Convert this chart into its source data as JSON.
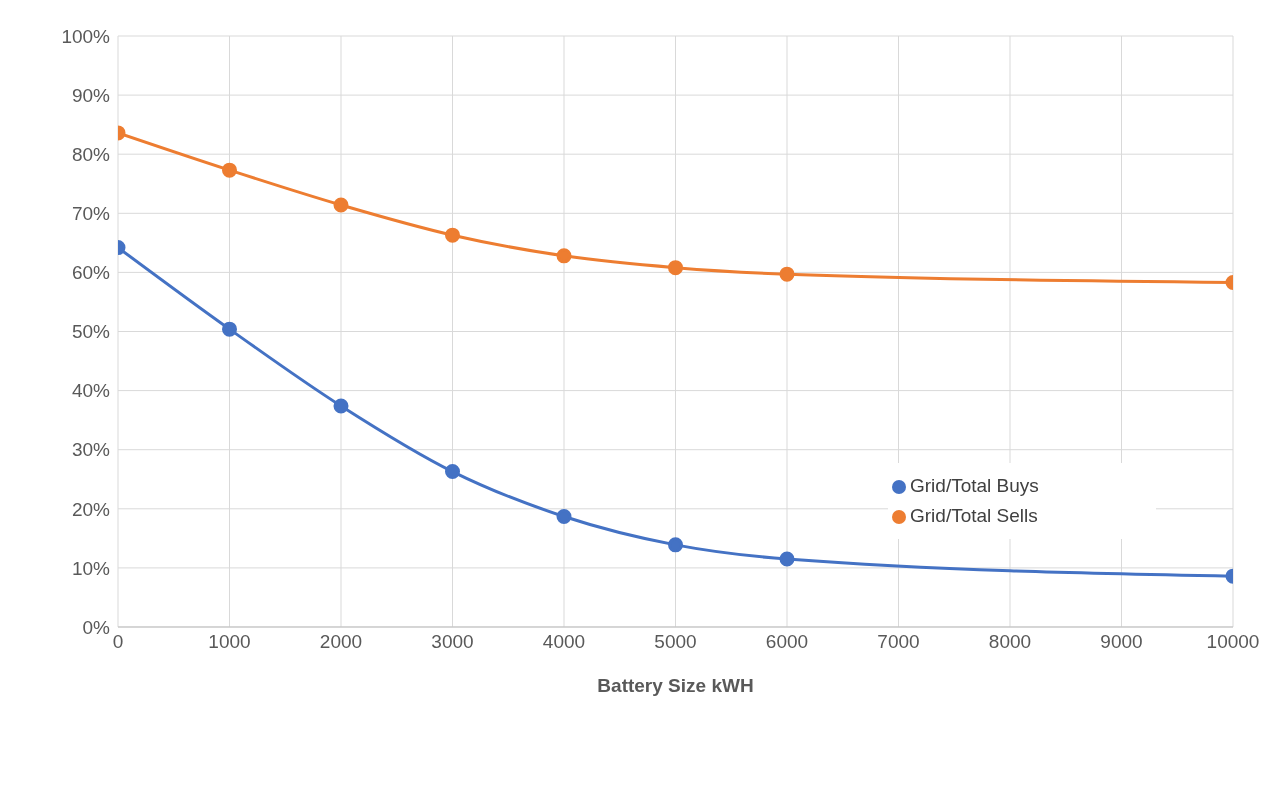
{
  "chart_data": {
    "type": "line",
    "xlabel": "Battery Size kWH",
    "x": [
      0,
      1000,
      2000,
      3000,
      4000,
      5000,
      6000,
      10000
    ],
    "series": [
      {
        "name": "Grid/Total Sells",
        "color": "#ed7d31",
        "values": [
          83.6,
          77.3,
          71.4,
          66.3,
          62.8,
          60.8,
          59.7,
          58.3
        ]
      },
      {
        "name": "Grid/Total Buys",
        "color": "#4472c4",
        "values": [
          64.2,
          50.4,
          37.4,
          26.3,
          18.7,
          13.9,
          11.5,
          8.6
        ]
      }
    ],
    "xlim": [
      0,
      10000
    ],
    "xticks": [
      0,
      1000,
      2000,
      3000,
      4000,
      5000,
      6000,
      7000,
      8000,
      9000,
      10000
    ],
    "ylim": [
      0,
      100
    ],
    "yticks": [
      {
        "value": 0,
        "label": "0%"
      },
      {
        "value": 10,
        "label": "10%"
      },
      {
        "value": 20,
        "label": "20%"
      },
      {
        "value": 30,
        "label": "30%"
      },
      {
        "value": 40,
        "label": "40%"
      },
      {
        "value": 50,
        "label": "50%"
      },
      {
        "value": 60,
        "label": "60%"
      },
      {
        "value": 70,
        "label": "70%"
      },
      {
        "value": 80,
        "label": "80%"
      },
      {
        "value": 90,
        "label": "90%"
      },
      {
        "value": 100,
        "label": "100%"
      }
    ],
    "grid": true,
    "legend": "right",
    "marker": "circle",
    "line_style": "solid"
  }
}
